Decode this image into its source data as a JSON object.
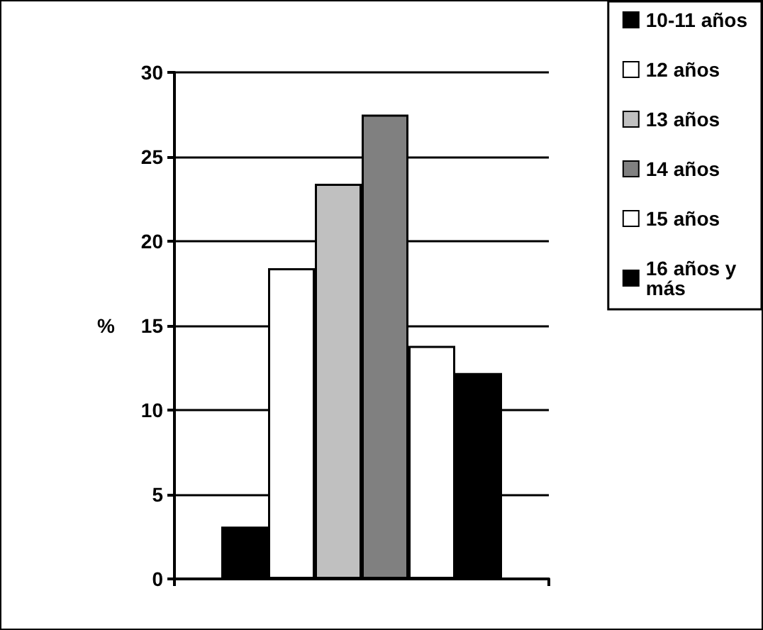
{
  "chart_data": {
    "type": "bar",
    "ylabel": "%",
    "categories": [
      null
    ],
    "series": [
      {
        "name": "10-11 años",
        "color": "#000000",
        "values": [
          3.1
        ]
      },
      {
        "name": "12 años",
        "color": "#ffffff",
        "values": [
          18.4
        ]
      },
      {
        "name": "13 años",
        "color": "#c0c0c0",
        "values": [
          23.4
        ]
      },
      {
        "name": "14 años",
        "color": "#808080",
        "values": [
          27.5
        ]
      },
      {
        "name": "15 años",
        "color": "#ffffff",
        "values": [
          13.8
        ]
      },
      {
        "name": "16 años y más",
        "color": "#000000",
        "values": [
          12.2
        ]
      }
    ],
    "ylim": [
      0,
      30
    ],
    "yticks": [
      0,
      5,
      10,
      15,
      20,
      25,
      30
    ],
    "grid": "y",
    "legend": "top right"
  }
}
